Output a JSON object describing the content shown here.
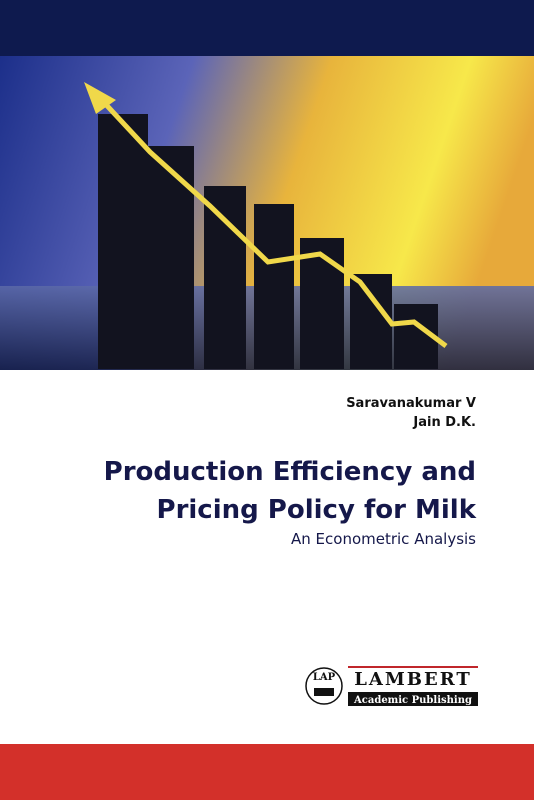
{
  "authors": [
    "Saravanakumar V",
    "Jain D.K."
  ],
  "title_lines": [
    "Production Efficiency and",
    "Pricing Policy for Milk"
  ],
  "subtitle": "An Econometric Analysis",
  "publisher": {
    "mark": "LAP",
    "name": "LAMBERT",
    "tagline": "Academic Publishing"
  }
}
